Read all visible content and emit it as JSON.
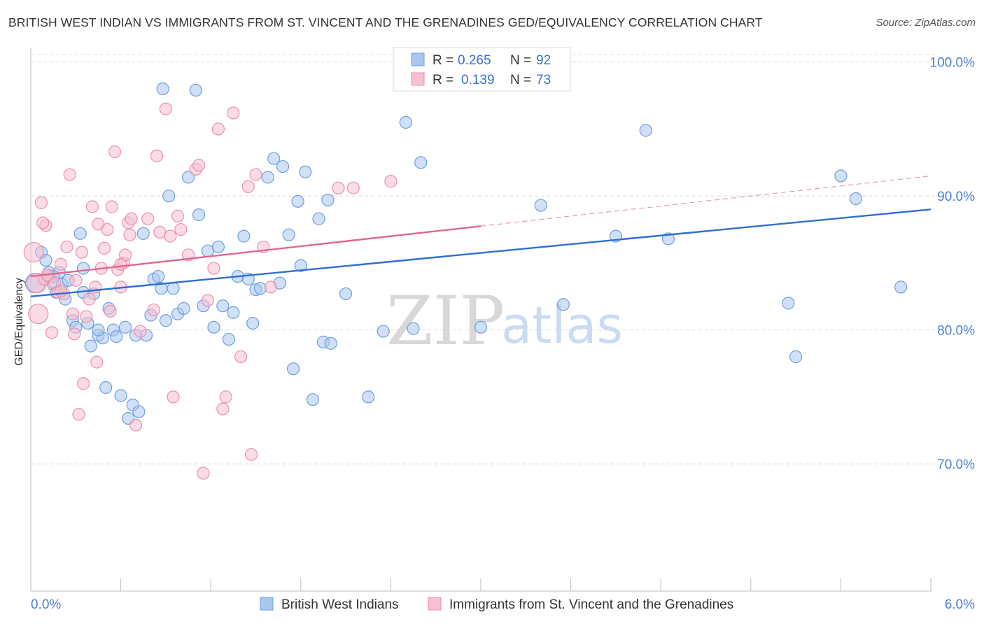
{
  "title": "BRITISH WEST INDIAN VS IMMIGRANTS FROM ST. VINCENT AND THE GRENADINES GED/EQUIVALENCY CORRELATION CHART",
  "source": "Source: ZipAtlas.com",
  "watermark": {
    "zip": "ZIP",
    "atlas": "atlas"
  },
  "colors": {
    "blue_fill": "#a9c6ef",
    "blue_stroke": "#6e9fe0",
    "blue_line": "#2f6fd1",
    "pink_fill": "#f7bfd0",
    "pink_stroke": "#ec8fae",
    "pink_line": "#e0688f",
    "grid": "#dcdcdc",
    "tick_text": "#4a7fd0"
  },
  "legend_stats": [
    {
      "series": "British West Indians",
      "r_label": "R =",
      "r": "0.265",
      "n_label": "N =",
      "n": "92"
    },
    {
      "series": "Immigrants from St. Vincent and the Grenadines",
      "r_label": "R =",
      "r": "0.139",
      "n_label": "N =",
      "n": "73"
    }
  ],
  "chart_data": {
    "type": "scatter",
    "title": "BRITISH WEST INDIAN VS IMMIGRANTS FROM ST. VINCENT AND THE GRENADINES GED/EQUIVALENCY CORRELATION CHART",
    "xlabel": "",
    "ylabel": "GED/Equivalency",
    "xlim": [
      0,
      6
    ],
    "ylim": [
      60.5,
      101.5
    ],
    "x_tick_labels": [
      "0.0%",
      "6.0%"
    ],
    "y_ticks": [
      70,
      80,
      90,
      100
    ],
    "y_tick_labels": [
      "70.0%",
      "80.0%",
      "90.0%",
      "100.0%"
    ],
    "grid": true,
    "legend_position": "bottom",
    "series": [
      {
        "name": "British West Indians",
        "color": "#a9c6ef",
        "trend": {
          "x0": 0,
          "y0": 82.5,
          "x1": 6,
          "y1": 89.0,
          "dashed_after": null
        },
        "points": [
          [
            0.03,
            83.5
          ],
          [
            0.07,
            85.8
          ],
          [
            0.1,
            85.2
          ],
          [
            0.12,
            84.3
          ],
          [
            0.15,
            83.4
          ],
          [
            0.17,
            82.8
          ],
          [
            0.19,
            84.3
          ],
          [
            0.21,
            83.4
          ],
          [
            0.23,
            82.3
          ],
          [
            0.25,
            83.7
          ],
          [
            0.28,
            80.7
          ],
          [
            0.3,
            80.2
          ],
          [
            0.33,
            87.2
          ],
          [
            0.35,
            84.6
          ],
          [
            0.38,
            80.5
          ],
          [
            0.4,
            78.8
          ],
          [
            0.42,
            82.7
          ],
          [
            0.45,
            79.6
          ],
          [
            0.48,
            79.4
          ],
          [
            0.5,
            75.7
          ],
          [
            0.52,
            81.6
          ],
          [
            0.55,
            80.0
          ],
          [
            0.57,
            79.5
          ],
          [
            0.6,
            75.1
          ],
          [
            0.63,
            80.2
          ],
          [
            0.68,
            74.4
          ],
          [
            0.7,
            79.6
          ],
          [
            0.75,
            87.2
          ],
          [
            0.77,
            79.6
          ],
          [
            0.8,
            81.1
          ],
          [
            0.82,
            83.8
          ],
          [
            0.85,
            84.0
          ],
          [
            0.87,
            83.1
          ],
          [
            0.9,
            80.7
          ],
          [
            0.92,
            90.0
          ],
          [
            0.95,
            83.1
          ],
          [
            0.98,
            81.2
          ],
          [
            1.05,
            91.4
          ],
          [
            1.02,
            81.6
          ],
          [
            1.12,
            88.6
          ],
          [
            1.15,
            81.8
          ],
          [
            1.18,
            85.9
          ],
          [
            1.22,
            80.2
          ],
          [
            1.25,
            86.2
          ],
          [
            1.28,
            81.8
          ],
          [
            1.32,
            79.3
          ],
          [
            1.35,
            81.3
          ],
          [
            1.38,
            84.0
          ],
          [
            1.42,
            87.0
          ],
          [
            1.45,
            83.8
          ],
          [
            1.48,
            80.5
          ],
          [
            1.5,
            83.0
          ],
          [
            1.53,
            83.1
          ],
          [
            1.58,
            91.4
          ],
          [
            1.62,
            92.8
          ],
          [
            1.66,
            83.5
          ],
          [
            1.68,
            92.2
          ],
          [
            1.72,
            87.1
          ],
          [
            1.75,
            77.1
          ],
          [
            1.78,
            89.6
          ],
          [
            1.8,
            84.8
          ],
          [
            1.83,
            91.8
          ],
          [
            1.88,
            74.8
          ],
          [
            1.92,
            88.3
          ],
          [
            1.95,
            79.1
          ],
          [
            1.98,
            89.7
          ],
          [
            2.0,
            79.0
          ],
          [
            2.1,
            82.7
          ],
          [
            2.25,
            75.0
          ],
          [
            2.35,
            79.9
          ],
          [
            2.5,
            95.5
          ],
          [
            2.6,
            92.5
          ],
          [
            2.55,
            80.1
          ],
          [
            3.0,
            80.2
          ],
          [
            3.4,
            89.3
          ],
          [
            3.55,
            81.9
          ],
          [
            3.9,
            87.0
          ],
          [
            4.1,
            94.9
          ],
          [
            4.25,
            86.8
          ],
          [
            5.05,
            82.0
          ],
          [
            5.1,
            78.0
          ],
          [
            5.4,
            91.5
          ],
          [
            5.5,
            89.8
          ],
          [
            5.8,
            83.2
          ],
          [
            0.88,
            98.0
          ],
          [
            1.1,
            97.9
          ],
          [
            0.45,
            80.0
          ],
          [
            0.35,
            82.8
          ],
          [
            0.65,
            73.4
          ],
          [
            0.72,
            73.9
          ],
          [
            0.15,
            84.0
          ],
          [
            3.55,
            98.8
          ]
        ]
      },
      {
        "name": "Immigrants from St. Vincent and the Grenadines",
        "color": "#f7bfd0",
        "trend": {
          "x0": 0,
          "y0": 84.0,
          "x1": 6,
          "y1": 91.5,
          "solid_until": 3.0
        },
        "points": [
          [
            0.02,
            85.8
          ],
          [
            0.04,
            83.5
          ],
          [
            0.05,
            81.2
          ],
          [
            0.07,
            89.5
          ],
          [
            0.09,
            83.8
          ],
          [
            0.1,
            87.8
          ],
          [
            0.12,
            84.0
          ],
          [
            0.14,
            79.8
          ],
          [
            0.16,
            83.5
          ],
          [
            0.18,
            82.8
          ],
          [
            0.2,
            84.9
          ],
          [
            0.22,
            82.7
          ],
          [
            0.24,
            86.2
          ],
          [
            0.26,
            91.6
          ],
          [
            0.28,
            81.2
          ],
          [
            0.3,
            83.7
          ],
          [
            0.32,
            73.7
          ],
          [
            0.34,
            85.8
          ],
          [
            0.35,
            76.0
          ],
          [
            0.37,
            81.0
          ],
          [
            0.39,
            82.3
          ],
          [
            0.41,
            89.2
          ],
          [
            0.43,
            83.2
          ],
          [
            0.45,
            87.9
          ],
          [
            0.47,
            84.6
          ],
          [
            0.49,
            86.1
          ],
          [
            0.51,
            87.5
          ],
          [
            0.53,
            81.4
          ],
          [
            0.54,
            89.2
          ],
          [
            0.56,
            93.3
          ],
          [
            0.58,
            84.5
          ],
          [
            0.6,
            83.2
          ],
          [
            0.62,
            85.0
          ],
          [
            0.63,
            85.6
          ],
          [
            0.65,
            88.0
          ],
          [
            0.67,
            88.3
          ],
          [
            0.7,
            72.9
          ],
          [
            0.73,
            79.9
          ],
          [
            0.78,
            88.3
          ],
          [
            0.82,
            81.5
          ],
          [
            0.84,
            93.0
          ],
          [
            0.86,
            87.3
          ],
          [
            0.9,
            96.5
          ],
          [
            0.95,
            75.0
          ],
          [
            0.98,
            88.5
          ],
          [
            1.0,
            87.5
          ],
          [
            1.05,
            85.6
          ],
          [
            1.1,
            92.0
          ],
          [
            1.15,
            69.3
          ],
          [
            1.18,
            82.2
          ],
          [
            1.22,
            84.6
          ],
          [
            1.25,
            95.0
          ],
          [
            1.28,
            74.1
          ],
          [
            1.3,
            75.0
          ],
          [
            1.35,
            96.2
          ],
          [
            1.4,
            78.0
          ],
          [
            1.45,
            90.7
          ],
          [
            1.47,
            70.7
          ],
          [
            1.5,
            91.6
          ],
          [
            1.55,
            86.2
          ],
          [
            1.6,
            83.2
          ],
          [
            2.05,
            90.6
          ],
          [
            2.15,
            90.6
          ],
          [
            2.4,
            91.1
          ],
          [
            0.08,
            88.0
          ],
          [
            0.11,
            84.1
          ],
          [
            0.29,
            79.7
          ],
          [
            0.44,
            77.6
          ],
          [
            0.66,
            87.1
          ],
          [
            0.93,
            87.0
          ],
          [
            1.12,
            92.3
          ],
          [
            0.2,
            82.9
          ],
          [
            0.6,
            84.9
          ]
        ]
      }
    ]
  }
}
